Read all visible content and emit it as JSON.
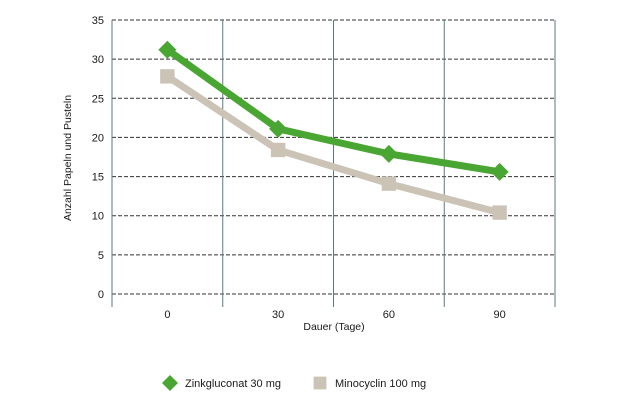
{
  "chart_data": {
    "type": "line",
    "title": "",
    "xlabel": "Dauer (Tage)",
    "ylabel": "Anzahl Papeln und Pusteln",
    "categories": [
      "0",
      "30",
      "60",
      "90"
    ],
    "x": [
      0,
      30,
      60,
      90
    ],
    "yticks": [
      "0",
      "5",
      "10",
      "15",
      "20",
      "25",
      "30",
      "35"
    ],
    "ylim": [
      0,
      35
    ],
    "grid": true,
    "legend_placement": "bottom",
    "series": [
      {
        "name": "Zinkgluconat 30 mg",
        "values": [
          31.2,
          21.1,
          17.9,
          15.6
        ],
        "color": "#4aa632",
        "marker": "diamond"
      },
      {
        "name": "Minocyclin 100 mg",
        "values": [
          27.8,
          18.4,
          14.1,
          10.4
        ],
        "color": "#cbc3b6",
        "marker": "square"
      }
    ]
  }
}
